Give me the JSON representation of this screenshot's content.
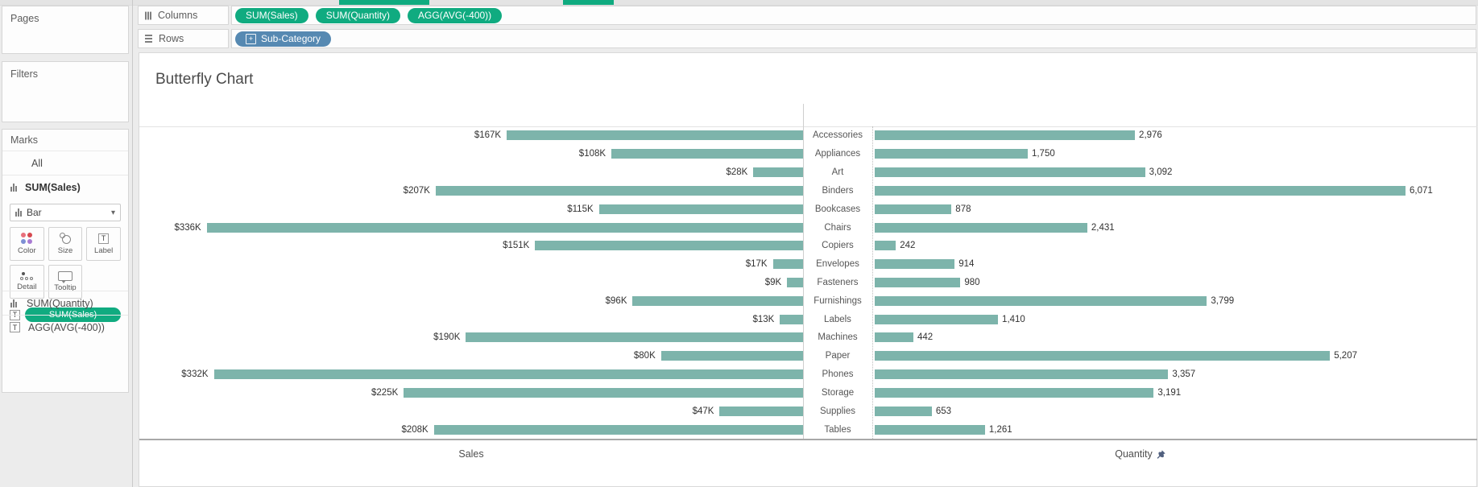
{
  "shelves": {
    "columns": {
      "label": "Columns",
      "pills": [
        {
          "label": "SUM(Sales)",
          "type": "measure"
        },
        {
          "label": "SUM(Quantity)",
          "type": "measure"
        },
        {
          "label": "AGG(AVG(-400))",
          "type": "measure"
        }
      ]
    },
    "rows": {
      "label": "Rows",
      "pills": [
        {
          "label": "Sub-Category",
          "type": "dimension",
          "expandable": true
        }
      ]
    }
  },
  "sidebar": {
    "pages": {
      "label": "Pages"
    },
    "filters": {
      "label": "Filters"
    },
    "marks": {
      "label": "Marks",
      "tab_all": "All",
      "tab_selected": "SUM(Sales)",
      "mark_type": "Bar",
      "buttons": [
        {
          "label": "Color"
        },
        {
          "label": "Size"
        },
        {
          "label": "Label"
        },
        {
          "label": "Detail"
        },
        {
          "label": "Tooltip"
        }
      ],
      "text_shelf_pill": "SUM(Sales)",
      "collapsed_cards": [
        {
          "label": "SUM(Quantity)",
          "icon": "bar-chart-icon"
        },
        {
          "label": "AGG(AVG(-400))",
          "icon": "text-icon"
        }
      ]
    }
  },
  "chart": {
    "title": "Butterfly Chart",
    "left_axis_title": "Sales",
    "right_axis_title": "Quantity",
    "pin_icon": "pin-icon"
  },
  "chart_data": {
    "type": "bar",
    "orientation": "horizontal-butterfly",
    "title": "Butterfly Chart",
    "categories": [
      "Accessories",
      "Appliances",
      "Art",
      "Binders",
      "Bookcases",
      "Chairs",
      "Copiers",
      "Envelopes",
      "Fasteners",
      "Furnishings",
      "Labels",
      "Machines",
      "Paper",
      "Phones",
      "Storage",
      "Supplies",
      "Tables"
    ],
    "series": [
      {
        "name": "Sales",
        "axis": "left",
        "direction": "right-to-left",
        "unit": "USD (thousands)",
        "values": [
          167,
          108,
          28,
          207,
          115,
          336,
          151,
          17,
          9,
          96,
          13,
          190,
          80,
          332,
          225,
          47,
          208
        ],
        "labels": [
          "$167K",
          "$108K",
          "$28K",
          "$207K",
          "$115K",
          "$336K",
          "$151K",
          "$17K",
          "$9K",
          "$96K",
          "$13K",
          "$190K",
          "$80K",
          "$332K",
          "$225K",
          "$47K",
          "$208K"
        ],
        "axis_max": 374
      },
      {
        "name": "Quantity",
        "axis": "right",
        "direction": "left-to-right",
        "values": [
          2976,
          1750,
          3092,
          6071,
          878,
          2431,
          242,
          914,
          980,
          3799,
          1410,
          442,
          5207,
          3357,
          3191,
          653,
          1261
        ],
        "labels": [
          "2,976",
          "1,750",
          "3,092",
          "6,071",
          "878",
          "2,431",
          "242",
          "914",
          "980",
          "3,799",
          "1,410",
          "442",
          "5,207",
          "3,357",
          "3,191",
          "653",
          "1,261"
        ],
        "axis_max": 6900
      }
    ],
    "bar_color": "#7db4ab",
    "gridlines": "off",
    "legend": "none"
  },
  "colors": {
    "measure_pill_green": "#10ab80",
    "dimension_pill_blue": "#5689b2",
    "bar_teal": "#7db4ab"
  }
}
